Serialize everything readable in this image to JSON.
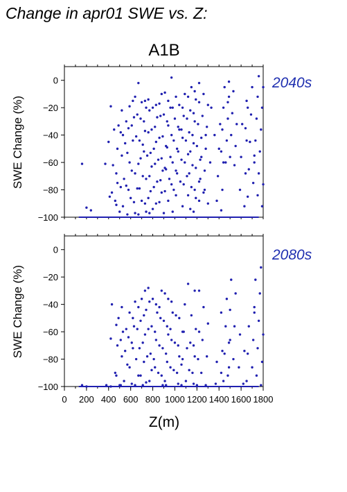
{
  "title": "Change in apr01 SWE vs. Z:",
  "scenario": "A1B",
  "colors": {
    "points": "#2020b0",
    "axis": "#000000",
    "label": "#1f2fb0"
  },
  "chart_data": [
    {
      "type": "scatter",
      "period_label": "2040s",
      "xlabel": "",
      "ylabel": "SWE Change (%)",
      "xlim": [
        0,
        1800
      ],
      "ylim": [
        -100,
        10
      ],
      "yticks": [
        0,
        -20,
        -40,
        -60,
        -80,
        -100
      ],
      "clusters": [
        {
          "x": 200,
          "ys": [
            -61,
            -93,
            -95
          ]
        },
        {
          "x": 390,
          "ys": [
            -19,
            -61,
            -85
          ]
        },
        {
          "x": 440,
          "ys": [
            -36,
            -45,
            -62,
            -75,
            -82,
            -91
          ]
        },
        {
          "x": 500,
          "ys": [
            -33,
            -40,
            -50,
            -55,
            -68,
            -78,
            -88,
            -96
          ]
        },
        {
          "x": 550,
          "ys": [
            -22,
            -30,
            -38,
            -46,
            -60,
            -72,
            -80,
            -92,
            -98
          ]
        },
        {
          "x": 600,
          "ys": [
            -12,
            -19,
            -27,
            -35,
            -44,
            -53,
            -66,
            -77,
            -86,
            -97
          ]
        },
        {
          "x": 650,
          "ys": [
            -2,
            -15,
            -25,
            -33,
            -41,
            -57,
            -68,
            -79,
            -89,
            -98
          ]
        },
        {
          "x": 700,
          "ys": [
            -16,
            -20,
            -28,
            -37,
            -44,
            -52,
            -61,
            -70,
            -79,
            -88,
            -96
          ]
        },
        {
          "x": 750,
          "ys": [
            -15,
            -22,
            -30,
            -38,
            -47,
            -55,
            -63,
            -72,
            -81,
            -90,
            -97
          ]
        },
        {
          "x": 800,
          "ys": [
            -14,
            -20,
            -27,
            -36,
            -45,
            -53,
            -61,
            -70,
            -78,
            -86,
            -94
          ]
        },
        {
          "x": 850,
          "ys": [
            -10,
            -18,
            -26,
            -34,
            -42,
            -50,
            -58,
            -66,
            -74,
            -82,
            -90
          ]
        },
        {
          "x": 900,
          "ys": [
            -9,
            -17,
            -25,
            -33,
            -41,
            -49,
            -57,
            -65,
            -73,
            -81,
            -89,
            -97
          ]
        },
        {
          "x": 950,
          "ys": [
            -15,
            -20,
            -30,
            -40,
            -48,
            -56,
            -64,
            -72,
            -80,
            -88,
            -96
          ]
        },
        {
          "x": 1000,
          "ys": [
            2,
            -12,
            -20,
            -28,
            -36,
            -44,
            -52,
            -60,
            -68,
            -76,
            -84
          ]
        },
        {
          "x": 1050,
          "ys": [
            -10,
            -18,
            -26,
            -34,
            -42,
            -50,
            -58,
            -66,
            -74
          ]
        },
        {
          "x": 1100,
          "ys": [
            -12,
            -20,
            -28,
            -36,
            -44,
            -52,
            -60,
            -68,
            -76,
            -84,
            -92
          ]
        },
        {
          "x": 1150,
          "ys": [
            -5,
            -14,
            -22,
            -30,
            -38,
            -46,
            -54,
            -62,
            -70,
            -78,
            -86,
            -94
          ]
        },
        {
          "x": 1200,
          "ys": [
            -8,
            -16,
            -24,
            -32,
            -40,
            -48,
            -56,
            -64,
            -72,
            -80,
            -88,
            -96
          ]
        },
        {
          "x": 1260,
          "ys": [
            -2,
            -10,
            -18,
            -26,
            -34,
            -42,
            -50,
            -58,
            -66,
            -74,
            -82,
            -90
          ]
        },
        {
          "x": 1300,
          "ys": [
            -20,
            -40,
            -60,
            -80
          ]
        },
        {
          "x": 1400,
          "ys": [
            -32,
            -40,
            -50,
            -60,
            -70,
            -80,
            -88,
            -95
          ]
        },
        {
          "x": 1460,
          "ys": [
            -5,
            -12,
            -20,
            -28,
            -36,
            -44,
            -52,
            -60
          ]
        },
        {
          "x": 1520,
          "ys": [
            -1,
            -8,
            -16,
            -24,
            -32,
            -40,
            -48,
            -56,
            -62
          ]
        },
        {
          "x": 1620,
          "ys": [
            -20,
            -32,
            -44,
            -56,
            -68,
            -80,
            -92
          ]
        },
        {
          "x": 1680,
          "ys": [
            -5,
            -15,
            -25,
            -35,
            -45,
            -55,
            -65,
            -75,
            -85
          ]
        },
        {
          "x": 1760,
          "ys": [
            3,
            -5,
            -12,
            -20,
            -28,
            -36,
            -44,
            -52,
            -60,
            -68,
            -76,
            -84,
            -92
          ]
        }
      ]
    },
    {
      "type": "scatter",
      "period_label": "2080s",
      "xlabel": "Z(m)",
      "ylabel": "SWE Change (%)",
      "xlim": [
        0,
        1800
      ],
      "ylim": [
        -100,
        10
      ],
      "yticks": [
        0,
        -20,
        -40,
        -60,
        -80,
        -100
      ],
      "xticks": [
        0,
        200,
        400,
        600,
        800,
        1000,
        1200,
        1400,
        1600,
        1800
      ],
      "clusters": [
        {
          "x": 200,
          "ys": [
            -99,
            -100
          ]
        },
        {
          "x": 400,
          "ys": [
            -40,
            -99,
            -100
          ]
        },
        {
          "x": 460,
          "ys": [
            -55,
            -65,
            -90,
            -99
          ]
        },
        {
          "x": 500,
          "ys": [
            -50,
            -60,
            -70,
            -78,
            -92,
            -99
          ]
        },
        {
          "x": 550,
          "ys": [
            -42,
            -58,
            -66,
            -74,
            -86,
            -96
          ]
        },
        {
          "x": 600,
          "ys": [
            -38,
            -46,
            -56,
            -64,
            -72,
            -84,
            -98
          ]
        },
        {
          "x": 650,
          "ys": [
            -42,
            -50,
            -58,
            -68,
            -80,
            -92,
            -99
          ]
        },
        {
          "x": 700,
          "ys": [
            -36,
            -44,
            -52,
            -62,
            -72,
            -82,
            -92,
            -99
          ]
        },
        {
          "x": 750,
          "ys": [
            -30,
            -38,
            -48,
            -58,
            -68,
            -78,
            -88,
            -97
          ]
        },
        {
          "x": 800,
          "ys": [
            -28,
            -36,
            -46,
            -56,
            -66,
            -76,
            -86,
            -96
          ]
        },
        {
          "x": 850,
          "ys": [
            -30,
            -40,
            -50,
            -60,
            -70,
            -80,
            -90,
            -99
          ]
        },
        {
          "x": 900,
          "ys": [
            -32,
            -42,
            -52,
            -62,
            -72,
            -82,
            -92,
            -99
          ]
        },
        {
          "x": 950,
          "ys": [
            -36,
            -46,
            -56,
            -66,
            -76,
            -86,
            -96
          ]
        },
        {
          "x": 1000,
          "ys": [
            -38,
            -48,
            -58,
            -68,
            -78,
            -88,
            -98
          ]
        },
        {
          "x": 1050,
          "ys": [
            -40,
            -50,
            -60,
            -70,
            -80,
            -90,
            -99
          ]
        },
        {
          "x": 1100,
          "ys": [
            -25,
            -60,
            -72,
            -84,
            -96
          ]
        },
        {
          "x": 1150,
          "ys": [
            -48,
            -58,
            -68,
            -78,
            -88,
            -98
          ]
        },
        {
          "x": 1200,
          "ys": [
            -30,
            -60,
            -70,
            -80,
            -90,
            -99
          ]
        },
        {
          "x": 1260,
          "ys": [
            -30,
            -42,
            -54,
            -66,
            -78,
            -90,
            -99
          ]
        },
        {
          "x": 1400,
          "ys": [
            -74,
            -82,
            -90,
            -98
          ]
        },
        {
          "x": 1460,
          "ys": [
            -36,
            -46,
            -56,
            -66,
            -76,
            -86,
            -96
          ]
        },
        {
          "x": 1520,
          "ys": [
            -22,
            -32,
            -44,
            -56,
            -68,
            -80,
            -92
          ]
        },
        {
          "x": 1620,
          "ys": [
            -62,
            -74,
            -86,
            -98
          ]
        },
        {
          "x": 1680,
          "ys": [
            -46,
            -56,
            -66,
            -76,
            -86,
            -96
          ]
        },
        {
          "x": 1760,
          "ys": [
            -13,
            -22,
            -32,
            -42,
            -52,
            -62,
            -72,
            -82,
            -92,
            -99
          ]
        }
      ]
    }
  ]
}
